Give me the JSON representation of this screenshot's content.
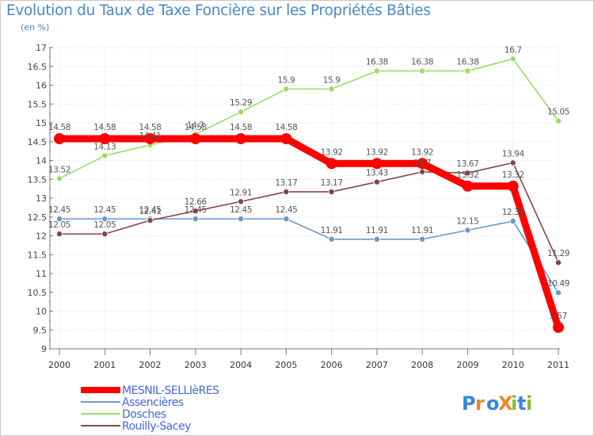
{
  "chart_data": {
    "type": "line",
    "title": "Evolution du Taux de Taxe Foncière sur les Propriétés Bâties",
    "subtitle": "(en %)",
    "x": [
      "2000",
      "2001",
      "2002",
      "2003",
      "2004",
      "2005",
      "2006",
      "2007",
      "2008",
      "2009",
      "2010",
      "2011"
    ],
    "ylim": [
      9,
      17
    ],
    "yticks": [
      "9",
      "9.5",
      "10",
      "10.5",
      "11",
      "11.5",
      "12",
      "12.5",
      "13",
      "13.5",
      "14",
      "14.5",
      "15",
      "15.5",
      "16",
      "16.5",
      "17"
    ],
    "grid": true,
    "legend_position": "bottom-left",
    "series": [
      {
        "name": "Assencières",
        "color": "#6699cc",
        "values": [
          12.45,
          12.45,
          12.45,
          12.45,
          12.45,
          12.45,
          11.91,
          11.91,
          11.91,
          12.15,
          12.39,
          10.49
        ],
        "labels": [
          "12.45",
          "12.45",
          "12.45",
          "12.45",
          "12.45",
          "12.45",
          "11.91",
          "11.91",
          "11.91",
          "12.15",
          "12.39",
          "10.49"
        ]
      },
      {
        "name": "Dosches",
        "color": "#99dd66",
        "values": [
          13.52,
          14.13,
          14.41,
          14.7,
          15.29,
          15.9,
          15.9,
          16.38,
          16.38,
          16.38,
          16.7,
          15.05
        ],
        "labels": [
          "13.52",
          "14.13",
          "14.41",
          "14.7",
          "15.29",
          "15.9",
          "15.9",
          "16.38",
          "16.38",
          "16.38",
          "16.7",
          "15.05"
        ]
      },
      {
        "name": "Rouilly-Sacey",
        "color": "#884444",
        "values": [
          12.05,
          12.05,
          12.41,
          12.66,
          12.91,
          13.17,
          13.17,
          13.43,
          13.7,
          13.67,
          13.94,
          11.29
        ],
        "labels": [
          "12.05",
          "12.05",
          "12.41",
          "12.66",
          "12.91",
          "13.17",
          "13.17",
          "13.43",
          "13.7",
          "13.67",
          "13.94",
          "11.29"
        ]
      },
      {
        "name": "MESNIL-SELLIèRES",
        "color": "#ff0000",
        "values": [
          14.58,
          14.58,
          14.58,
          14.58,
          14.58,
          14.58,
          13.92,
          13.92,
          13.92,
          13.32,
          13.32,
          9.57
        ],
        "labels": [
          "14.58",
          "14.58",
          "14.58",
          "14.58",
          "14.58",
          "14.58",
          "13.92",
          "13.92",
          "13.92",
          "13.32",
          "13.32",
          "9.57"
        ]
      }
    ],
    "legend": [
      {
        "name": "MESNIL-SELLIèRES",
        "color": "#ff0000"
      },
      {
        "name": "Assencières",
        "color": "#6699cc"
      },
      {
        "name": "Dosches",
        "color": "#99dd66"
      },
      {
        "name": "Rouilly-Sacey",
        "color": "#884444"
      }
    ],
    "legend_text_color": "#4466dd"
  },
  "logo": {
    "text": "ProXiti"
  }
}
